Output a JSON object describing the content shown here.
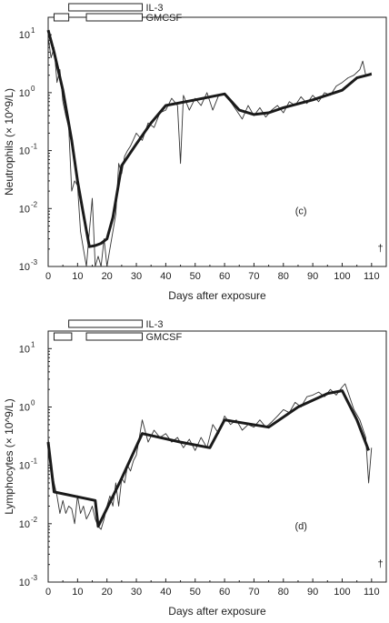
{
  "chart_data": [
    {
      "type": "line",
      "panel_label": "(c)",
      "xlabel": "Days after exposure",
      "ylabel": "Neutrophils (× 10^9/L)",
      "xlim": [
        0,
        115
      ],
      "ylim": [
        0.001,
        20
      ],
      "yscale": "log",
      "x_ticks": [
        "0",
        "10",
        "20",
        "30",
        "40",
        "50",
        "60",
        "70",
        "80",
        "90",
        "100",
        "110"
      ],
      "y_ticks": [
        {
          "value": 10,
          "base": "10",
          "exp": "1"
        },
        {
          "value": 1,
          "base": "10",
          "exp": "0"
        },
        {
          "value": 0.1,
          "base": "10",
          "exp": "-1"
        },
        {
          "value": 0.01,
          "base": "10",
          "exp": "-2"
        },
        {
          "value": 0.001,
          "base": "10",
          "exp": "-3"
        }
      ],
      "grid": false,
      "death_marker": {
        "label": "†",
        "x": 113
      },
      "treatments": [
        {
          "name": "IL-3",
          "start": 7,
          "end": 32
        },
        {
          "name": "GMCSF",
          "start": 2,
          "end": 7
        },
        {
          "name": "GMCSF",
          "start": 13,
          "end": 32
        }
      ],
      "series": [
        {
          "role": "fitted-trend",
          "x": [
            0,
            2,
            5,
            8,
            10,
            12,
            14,
            16,
            18,
            20,
            22,
            25,
            30,
            35,
            40,
            50,
            60,
            65,
            70,
            75,
            80,
            90,
            100,
            105,
            110
          ],
          "y": [
            12,
            5,
            1.1,
            0.15,
            0.03,
            0.008,
            0.0022,
            0.0023,
            0.0025,
            0.003,
            0.007,
            0.055,
            0.13,
            0.3,
            0.6,
            0.75,
            0.95,
            0.5,
            0.42,
            0.45,
            0.55,
            0.75,
            1.1,
            1.8,
            2.1
          ]
        },
        {
          "role": "observed",
          "x": [
            0,
            1,
            2,
            3,
            4,
            5,
            6,
            7,
            8,
            9,
            10,
            11,
            12,
            13,
            14,
            15,
            16,
            17,
            18,
            19,
            20,
            21,
            22,
            23,
            24,
            25,
            26,
            27,
            28,
            30,
            32,
            34,
            36,
            38,
            40,
            42,
            44,
            45,
            46,
            48,
            50,
            52,
            54,
            56,
            58,
            60,
            62,
            64,
            66,
            68,
            70,
            72,
            74,
            76,
            78,
            80,
            82,
            84,
            86,
            88,
            90,
            92,
            94,
            96,
            98,
            100,
            102,
            104,
            106,
            107,
            108,
            110
          ],
          "y": [
            9,
            4,
            6,
            1.5,
            2.5,
            0.7,
            0.4,
            0.25,
            0.02,
            0.03,
            0.025,
            0.004,
            0.002,
            0.001,
            0.004,
            0.015,
            0.001,
            0.0015,
            0.001,
            0.003,
            0.001,
            0.002,
            0.004,
            0.008,
            0.06,
            0.04,
            0.08,
            0.1,
            0.12,
            0.2,
            0.15,
            0.3,
            0.25,
            0.45,
            0.5,
            0.8,
            0.6,
            0.06,
            0.9,
            0.5,
            0.8,
            0.6,
            1.0,
            0.5,
            0.9,
            0.95,
            0.7,
            0.5,
            0.35,
            0.6,
            0.4,
            0.55,
            0.38,
            0.5,
            0.6,
            0.45,
            0.7,
            0.6,
            0.85,
            0.65,
            0.9,
            0.7,
            1.0,
            0.9,
            1.3,
            1.5,
            1.8,
            2.0,
            2.5,
            3.5,
            2.0,
            2.2
          ]
        }
      ]
    },
    {
      "type": "line",
      "panel_label": "(d)",
      "xlabel": "Days after exposure",
      "ylabel": "Lymphocytes (× 10^9/L)",
      "xlim": [
        0,
        115
      ],
      "ylim": [
        0.001,
        20
      ],
      "yscale": "log",
      "x_ticks": [
        "0",
        "10",
        "20",
        "30",
        "40",
        "50",
        "60",
        "70",
        "80",
        "90",
        "100",
        "110"
      ],
      "y_ticks": [
        {
          "value": 10,
          "base": "10",
          "exp": "1"
        },
        {
          "value": 1,
          "base": "10",
          "exp": "0"
        },
        {
          "value": 0.1,
          "base": "10",
          "exp": "-1"
        },
        {
          "value": 0.01,
          "base": "10",
          "exp": "-2"
        },
        {
          "value": 0.001,
          "base": "10",
          "exp": "-3"
        }
      ],
      "grid": false,
      "death_marker": {
        "label": "†",
        "x": 113
      },
      "treatments": [
        {
          "name": "IL-3",
          "start": 7,
          "end": 32
        },
        {
          "name": "GMCSF",
          "start": 2,
          "end": 8
        },
        {
          "name": "GMCSF",
          "start": 13,
          "end": 32
        }
      ],
      "series": [
        {
          "role": "fitted-trend",
          "x": [
            0,
            2,
            16,
            17,
            25,
            32,
            45,
            55,
            60,
            75,
            85,
            95,
            100,
            105,
            109
          ],
          "y": [
            0.25,
            0.035,
            0.025,
            0.009,
            0.06,
            0.35,
            0.25,
            0.2,
            0.6,
            0.45,
            1.0,
            1.7,
            1.9,
            0.6,
            0.18
          ]
        },
        {
          "role": "observed",
          "x": [
            0,
            1,
            2,
            3,
            4,
            5,
            6,
            7,
            8,
            9,
            10,
            11,
            12,
            13,
            14,
            15,
            16,
            17,
            18,
            19,
            20,
            21,
            22,
            23,
            24,
            25,
            26,
            27,
            28,
            29,
            30,
            31,
            32,
            34,
            36,
            38,
            40,
            42,
            44,
            46,
            48,
            50,
            52,
            54,
            56,
            58,
            60,
            62,
            64,
            66,
            68,
            70,
            72,
            74,
            76,
            78,
            80,
            82,
            84,
            86,
            88,
            90,
            92,
            94,
            96,
            98,
            100,
            101,
            102,
            104,
            106,
            108,
            109,
            110
          ],
          "y": [
            0.3,
            0.1,
            0.05,
            0.03,
            0.015,
            0.025,
            0.015,
            0.02,
            0.018,
            0.01,
            0.03,
            0.015,
            0.02,
            0.012,
            0.015,
            0.02,
            0.012,
            0.009,
            0.008,
            0.012,
            0.02,
            0.03,
            0.02,
            0.05,
            0.02,
            0.06,
            0.05,
            0.1,
            0.08,
            0.12,
            0.15,
            0.3,
            0.6,
            0.25,
            0.4,
            0.3,
            0.35,
            0.25,
            0.3,
            0.2,
            0.28,
            0.18,
            0.3,
            0.2,
            0.5,
            0.35,
            0.7,
            0.5,
            0.6,
            0.4,
            0.5,
            0.45,
            0.6,
            0.45,
            0.55,
            0.7,
            0.9,
            0.8,
            1.2,
            1.0,
            1.5,
            1.6,
            1.8,
            1.5,
            2.0,
            1.6,
            2.2,
            2.5,
            1.8,
            0.9,
            0.6,
            0.3,
            0.05,
            0.2
          ]
        }
      ]
    }
  ]
}
